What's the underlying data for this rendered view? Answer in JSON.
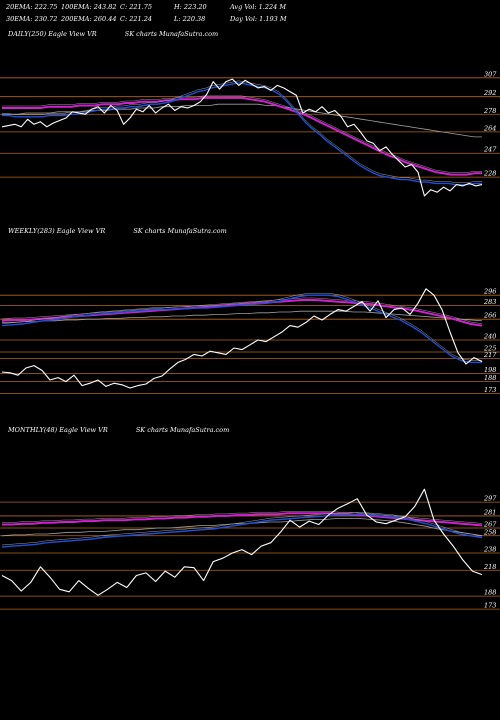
{
  "header": {
    "row1": [
      "20EMA: 222.75",
      "100EMA: 243.82",
      "C: 221.75",
      "H: 223.20",
      "Avg Vol: 1.224  M"
    ],
    "row2": [
      "30EMA: 230.72",
      "200EMA: 260.44",
      "C: 221.24",
      "L: 220.38",
      "Day Vol: 1.193  M"
    ]
  },
  "panels": [
    {
      "title": [
        "DAILY(250) Eagle  View  VR",
        "SK charts MunafaSutra.com"
      ]
    },
    {
      "title": [
        "WEEKLY(283) Eagle  View  VR",
        "SK charts MunafaSutra.com"
      ]
    },
    {
      "title": [
        "MONTHLY(48) Eagle  View  VR",
        "SK charts MunafaSutra.com"
      ]
    }
  ],
  "colors": {
    "background": "#000000",
    "price": "#ffffff",
    "level": "#b5651d",
    "ema_short": "#1f4fd8",
    "ema_long": "#d020d0",
    "ema_mid": "#a0a0a0"
  },
  "chart_data": [
    {
      "type": "line",
      "title": "DAILY(250) Eagle  View  VR",
      "levels": [
        307,
        292,
        278,
        264,
        247,
        228
      ],
      "ylim": [
        205,
        318
      ],
      "series": [
        {
          "values": [
            268,
            269,
            270,
            268,
            274,
            270,
            272,
            268,
            271,
            273,
            275,
            280,
            279,
            278,
            282,
            284,
            279,
            285,
            281,
            270,
            275,
            282,
            280,
            285,
            279,
            283,
            286,
            281,
            284,
            283,
            285,
            288,
            294,
            304,
            298,
            304,
            306,
            301,
            305,
            302,
            299,
            300,
            297,
            301,
            299,
            296,
            293,
            279,
            282,
            280,
            284,
            279,
            281,
            276,
            268,
            270,
            264,
            257,
            255,
            249,
            252,
            246,
            241,
            236,
            238,
            232,
            213,
            218,
            216,
            220,
            217,
            222,
            221,
            223,
            221,
            222
          ]
        },
        {
          "values": [
            277,
            277,
            276,
            276,
            276,
            276,
            276,
            277,
            277,
            277,
            278,
            278,
            279,
            280,
            281,
            282,
            282,
            283,
            283,
            284,
            284,
            285,
            286,
            286,
            287,
            288,
            290,
            292,
            294,
            296,
            297,
            299,
            300,
            301,
            302,
            303,
            302,
            301,
            300,
            299,
            297,
            294,
            289,
            283,
            277,
            271,
            266,
            262,
            257,
            253,
            249,
            245,
            241,
            237,
            234,
            231,
            229,
            228,
            227,
            226,
            226,
            225,
            224,
            224,
            223,
            223,
            223,
            222,
            222,
            222,
            223,
            223
          ]
        },
        {
          "values": [
            283,
            283,
            283,
            283,
            283,
            283,
            284,
            284,
            284,
            284,
            285,
            285,
            285,
            286,
            286,
            286,
            287,
            287,
            288,
            288,
            288,
            289,
            289,
            290,
            290,
            290,
            291,
            291,
            291,
            291,
            291,
            291,
            290,
            289,
            288,
            286,
            284,
            282,
            280,
            278,
            275,
            272,
            269,
            266,
            263,
            260,
            257,
            254,
            251,
            248,
            245,
            243,
            240,
            238,
            236,
            234,
            232,
            231,
            230,
            230,
            230,
            231,
            231
          ]
        },
        {
          "values": [
            278,
            278,
            278,
            279,
            279,
            279,
            279,
            280,
            280,
            280,
            280,
            281,
            281,
            281,
            282,
            282,
            282,
            283,
            283,
            283,
            284,
            284,
            284,
            285,
            285,
            285,
            285,
            286,
            286,
            286,
            286,
            286,
            286,
            285,
            285,
            284,
            283,
            282,
            281,
            280,
            279,
            278,
            277,
            276,
            275,
            274,
            273,
            272,
            271,
            270,
            269,
            268,
            267,
            266,
            265,
            264,
            263,
            262,
            261,
            260,
            260
          ]
        }
      ]
    },
    {
      "type": "line",
      "title": "WEEKLY(283) Eagle  View  VR",
      "levels": [
        296,
        283,
        266,
        240,
        225,
        217,
        198,
        188,
        173
      ],
      "ylim": [
        170,
        310
      ],
      "series": [
        {
          "values": [
            200,
            199,
            196,
            205,
            208,
            202,
            190,
            193,
            188,
            196,
            183,
            186,
            190,
            182,
            186,
            184,
            180,
            183,
            185,
            192,
            195,
            204,
            212,
            216,
            222,
            220,
            226,
            224,
            222,
            230,
            228,
            234,
            240,
            238,
            244,
            250,
            258,
            256,
            262,
            270,
            265,
            272,
            278,
            276,
            282,
            288,
            276,
            289,
            268,
            278,
            280,
            272,
            286,
            304,
            296,
            278,
            250,
            224,
            210,
            218,
            213
          ]
        },
        {
          "values": [
            258,
            259,
            260,
            262,
            264,
            265,
            267,
            269,
            270,
            272,
            273,
            274,
            275,
            276,
            277,
            278,
            278,
            279,
            279,
            280,
            280,
            281,
            282,
            283,
            284,
            285,
            286,
            288,
            291,
            294,
            296,
            296,
            296,
            294,
            290,
            285,
            280,
            275,
            270,
            265,
            258,
            250,
            240,
            230,
            220,
            214,
            212,
            212
          ]
        },
        {
          "values": [
            264,
            265,
            265,
            266,
            267,
            268,
            269,
            270,
            271,
            272,
            273,
            274,
            275,
            276,
            277,
            278,
            279,
            280,
            281,
            282,
            283,
            284,
            285,
            286,
            287,
            288,
            289,
            290,
            290,
            289,
            288,
            287,
            286,
            285,
            283,
            281,
            279,
            277,
            274,
            271,
            268,
            264,
            260,
            258
          ]
        },
        {
          "values": [
            262,
            262,
            263,
            263,
            264,
            264,
            265,
            265,
            266,
            266,
            267,
            267,
            268,
            268,
            269,
            269,
            270,
            270,
            271,
            271,
            272,
            272,
            273,
            273,
            274,
            274,
            275,
            275,
            276,
            276,
            276,
            276,
            276,
            275,
            275,
            274,
            273,
            272,
            271,
            270,
            269,
            268,
            267,
            266,
            265,
            264
          ]
        }
      ]
    },
    {
      "type": "line",
      "title": "MONTHLY(48) Eagle  View  VR",
      "levels": [
        297,
        281,
        267,
        258,
        238,
        218,
        188,
        173
      ],
      "ylim": [
        165,
        318
      ],
      "series": [
        {
          "values": [
            212,
            206,
            194,
            204,
            222,
            210,
            196,
            193,
            206,
            197,
            189,
            196,
            204,
            198,
            212,
            215,
            205,
            217,
            210,
            222,
            221,
            206,
            228,
            232,
            238,
            242,
            236,
            246,
            250,
            262,
            276,
            268,
            275,
            271,
            282,
            290,
            295,
            301,
            282,
            274,
            272,
            276,
            280,
            292,
            312,
            276,
            260,
            246,
            230,
            217,
            213
          ]
        },
        {
          "values": [
            245,
            246,
            247,
            248,
            250,
            251,
            252,
            253,
            254,
            256,
            257,
            258,
            259,
            260,
            261,
            262,
            263,
            264,
            265,
            266,
            268,
            270,
            272,
            274,
            276,
            277,
            278,
            279,
            280,
            281,
            282,
            282,
            283,
            282,
            281,
            280,
            278,
            275,
            272,
            268,
            264,
            260,
            258,
            256
          ]
        },
        {
          "values": [
            271,
            271,
            272,
            272,
            273,
            273,
            274,
            274,
            275,
            275,
            276,
            276,
            276,
            277,
            277,
            278,
            278,
            279,
            279,
            280,
            280,
            281,
            281,
            282,
            282,
            283,
            283,
            283,
            284,
            284,
            284,
            284,
            284,
            283,
            283,
            282,
            281,
            280,
            279,
            278,
            277,
            276,
            275,
            274,
            273,
            272,
            271,
            270
          ]
        },
        {
          "values": [
            258,
            259,
            259,
            260,
            260,
            261,
            262,
            262,
            263,
            263,
            264,
            265,
            265,
            266,
            267,
            267,
            268,
            269,
            270,
            270,
            271,
            272,
            272,
            273,
            274,
            274,
            275,
            276,
            277,
            277,
            278,
            278,
            278,
            277,
            276,
            275,
            273,
            271,
            269,
            266,
            264,
            262,
            260,
            258
          ]
        }
      ]
    }
  ]
}
